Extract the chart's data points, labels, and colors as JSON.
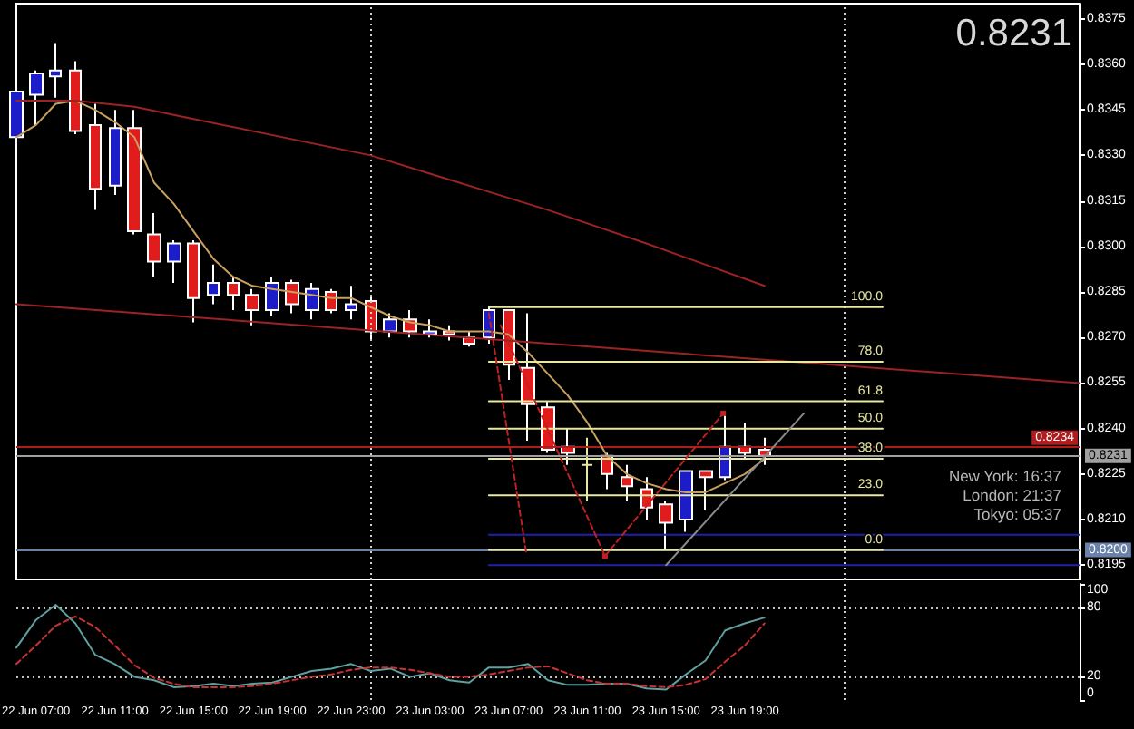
{
  "chart_data": [
    {
      "type": "candlestick",
      "x": [
        "--06-22T06:00",
        "--06-22T07:00",
        "--06-22T08:00",
        "--06-22T09:00",
        "--06-22T10:00",
        "--06-22T11:00",
        "--06-22T12:00",
        "--06-22T13:00",
        "--06-22T14:00",
        "--06-22T15:00",
        "--06-22T16:00",
        "--06-22T17:00",
        "--06-22T18:00",
        "--06-22T19:00",
        "--06-22T20:00",
        "--06-22T21:00",
        "--06-22T22:00",
        "--06-22T23:00",
        "--06-23T00:00",
        "--06-23T01:00",
        "--06-23T02:00",
        "--06-23T03:00",
        "--06-23T04:00",
        "--06-23T05:00",
        "--06-23T06:00",
        "--06-23T07:00",
        "--06-23T08:00",
        "--06-23T09:00",
        "--06-23T10:00",
        "--06-23T11:00",
        "--06-23T12:00",
        "--06-23T13:00",
        "--06-23T14:00",
        "--06-23T15:00",
        "--06-23T16:00",
        "--06-23T17:00",
        "--06-23T18:00",
        "--06-23T19:00",
        "--06-23T20:00"
      ],
      "ohlc": [
        [
          0.8336,
          0.8352,
          0.8334,
          0.8351
        ],
        [
          0.835,
          0.8358,
          0.834,
          0.8357
        ],
        [
          0.8356,
          0.8367,
          0.8349,
          0.8358
        ],
        [
          0.8358,
          0.8361,
          0.8337,
          0.8338
        ],
        [
          0.834,
          0.8347,
          0.8312,
          0.8319
        ],
        [
          0.832,
          0.8345,
          0.8317,
          0.8339
        ],
        [
          0.8339,
          0.8345,
          0.8304,
          0.8305
        ],
        [
          0.8304,
          0.8311,
          0.829,
          0.8295
        ],
        [
          0.8295,
          0.8302,
          0.8288,
          0.8301
        ],
        [
          0.8301,
          0.8302,
          0.8275,
          0.8283
        ],
        [
          0.8284,
          0.8294,
          0.8281,
          0.8288
        ],
        [
          0.8288,
          0.829,
          0.8279,
          0.8284
        ],
        [
          0.8284,
          0.8286,
          0.8274,
          0.8279
        ],
        [
          0.8279,
          0.829,
          0.8277,
          0.8288
        ],
        [
          0.8288,
          0.8289,
          0.8278,
          0.8281
        ],
        [
          0.8279,
          0.8288,
          0.8276,
          0.8286
        ],
        [
          0.8285,
          0.8286,
          0.8278,
          0.8279
        ],
        [
          0.8279,
          0.8287,
          0.8276,
          0.8281
        ],
        [
          0.8282,
          0.8284,
          0.8269,
          0.8272
        ],
        [
          0.8272,
          0.8278,
          0.827,
          0.8276
        ],
        [
          0.8276,
          0.8279,
          0.827,
          0.8272
        ],
        [
          0.8271,
          0.8276,
          0.827,
          0.8272
        ],
        [
          0.8272,
          0.8274,
          0.8269,
          0.8271
        ],
        [
          0.827,
          0.8272,
          0.8267,
          0.8268
        ],
        [
          0.827,
          0.828,
          0.8268,
          0.8279
        ],
        [
          0.8279,
          0.8279,
          0.8256,
          0.8261
        ],
        [
          0.826,
          0.8278,
          0.8236,
          0.8248
        ],
        [
          0.8247,
          0.8249,
          0.8232,
          0.8233
        ],
        [
          0.8234,
          0.824,
          0.8228,
          0.8232
        ],
        [
          0.8228,
          0.8237,
          0.8216,
          0.8228
        ],
        [
          0.8231,
          0.8232,
          0.822,
          0.8225
        ],
        [
          0.8224,
          0.8228,
          0.8216,
          0.8221
        ],
        [
          0.822,
          0.8224,
          0.821,
          0.8214
        ],
        [
          0.8215,
          0.8216,
          0.82,
          0.8209
        ],
        [
          0.821,
          0.8226,
          0.8206,
          0.8226
        ],
        [
          0.8226,
          0.8226,
          0.8213,
          0.8224
        ],
        [
          0.8224,
          0.8245,
          0.8223,
          0.8234
        ],
        [
          0.8234,
          0.8242,
          0.823,
          0.8232
        ],
        [
          0.8233,
          0.8237,
          0.8228,
          0.8231
        ]
      ],
      "colors": [
        "#1c1cc8",
        "#1c1cc8",
        "#1c1cc8",
        "#e01c1c",
        "#e01c1c",
        "#1c1cc8",
        "#e01c1c",
        "#e01c1c",
        "#1c1cc8",
        "#e01c1c",
        "#1c1cc8",
        "#e01c1c",
        "#e01c1c",
        "#1c1cc8",
        "#e01c1c",
        "#1c1cc8",
        "#e01c1c",
        "#1c1cc8",
        "#e01c1c",
        "#1c1cc8",
        "#e01c1c",
        "#1c1cc8",
        "#e01c1c",
        "#e01c1c",
        "#1c1cc8",
        "#e01c1c",
        "#e01c1c",
        "#e01c1c",
        "#e01c1c",
        "#e8e8a0",
        "#e01c1c",
        "#e01c1c",
        "#e01c1c",
        "#e01c1c",
        "#1c1cc8",
        "#e01c1c",
        "#1c1cc8",
        "#e01c1c",
        "#e01c1c"
      ],
      "series": [
        {
          "type": "line",
          "color": "#c8a060",
          "values": [
            0.8336,
            0.834,
            0.8347,
            0.8348,
            0.8345,
            0.8341,
            0.8336,
            0.8321,
            0.8314,
            0.8305,
            0.8296,
            0.829,
            0.8287,
            0.8286,
            0.8285,
            0.8284,
            0.8283,
            0.8283,
            0.828,
            0.8277,
            0.8275,
            0.8274,
            0.8272,
            0.8272,
            0.8272,
            0.8271,
            0.8265,
            0.8258,
            0.8251,
            0.8242,
            0.8231,
            0.8225,
            0.8222,
            0.822,
            0.8219,
            0.8219,
            0.8222,
            0.8225,
            0.823
          ]
        },
        {
          "type": "line",
          "color": "#9b2323",
          "x": [
            "--06-22T06:00",
            "--06-22T09:00",
            "--06-22T12:00",
            "--06-22T15:00",
            "--06-23T00:00",
            "--06-23T03:00",
            "--06-23T09:00",
            "--06-23T14:00",
            "--06-23T20:00"
          ],
          "values": [
            0.8348,
            0.8348,
            0.8346,
            0.8342,
            0.833,
            0.8324,
            0.8312,
            0.8301,
            0.8287
          ]
        },
        {
          "type": "line",
          "color": "#9b2323",
          "x": [
            "--06-22T06:00",
            "--06-24T12:00"
          ],
          "values": [
            0.8281,
            0.8255
          ]
        },
        {
          "type": "line",
          "name": "100.0",
          "color": "#e8e8a0",
          "x": [
            "--06-23T06:00",
            "--06-24T02:00"
          ],
          "values": [
            0.828,
            0.828
          ]
        },
        {
          "type": "line",
          "name": "78.0",
          "color": "#e8e8a0",
          "x": [
            "--06-23T06:00",
            "--06-24T02:00"
          ],
          "values": [
            0.8262,
            0.8262
          ]
        },
        {
          "type": "line",
          "name": "61.8",
          "color": "#e8e8a0",
          "x": [
            "--06-23T06:00",
            "--06-24T02:00"
          ],
          "values": [
            0.8249,
            0.8249
          ]
        },
        {
          "type": "line",
          "name": "50.0",
          "color": "#e8e8a0",
          "x": [
            "--06-23T06:00",
            "--06-24T02:00"
          ],
          "values": [
            0.824,
            0.824
          ]
        },
        {
          "type": "line",
          "name": "38.0",
          "color": "#e8e8a0",
          "x": [
            "--06-23T06:00",
            "--06-24T02:00"
          ],
          "values": [
            0.823,
            0.823
          ]
        },
        {
          "type": "line",
          "name": "23.0",
          "color": "#e8e8a0",
          "x": [
            "--06-23T06:00",
            "--06-24T02:00"
          ],
          "values": [
            0.8218,
            0.8218
          ]
        },
        {
          "type": "line",
          "name": "0.0",
          "color": "#e8e8a0",
          "x": [
            "--06-23T06:00",
            "--06-24T02:00"
          ],
          "values": [
            0.82,
            0.82
          ]
        },
        {
          "type": "line",
          "color": "#2020a8",
          "x": [
            "--06-23T06:00",
            "--06-24T12:00"
          ],
          "values": [
            0.8205,
            0.8205
          ]
        },
        {
          "type": "line",
          "color": "#2020a8",
          "x": [
            "--06-23T06:00",
            "--06-24T12:00"
          ],
          "values": [
            0.8195,
            0.8195
          ]
        },
        {
          "type": "line",
          "color": "#8a8a8a",
          "x": [
            "--06-23T15:00",
            "--06-23T22:00"
          ],
          "values": [
            0.8195,
            0.8245
          ]
        },
        {
          "type": "line",
          "color": "#c02020",
          "line_style": "dashed",
          "x": [
            "--06-23T06:00",
            "--06-23T07:54"
          ],
          "values": [
            0.8278,
            0.8199
          ]
        },
        {
          "type": "line",
          "color": "#c02020",
          "line_style": "dashed",
          "x": [
            "--06-23T06:36",
            "--06-23T11:54"
          ],
          "values": [
            0.8274,
            0.8198
          ]
        },
        {
          "type": "line",
          "color": "#c02020",
          "line_style": "dashed",
          "marker": "square",
          "x": [
            "--06-23T11:54",
            "--06-23T17:54"
          ],
          "values": [
            0.8198,
            0.8245
          ]
        }
      ],
      "xlim": [
        "--06-22T06:00",
        "--06-24T12:00"
      ],
      "ylim": [
        0.819,
        0.838
      ],
      "yticks": [
        0.8195,
        {
          "value": 0.821,
          "label": "0.8210"
        },
        0.8225,
        {
          "value": 0.824,
          "label": "0.8240"
        },
        0.8255,
        {
          "value": 0.827,
          "label": "0.8270"
        },
        0.8285,
        {
          "value": 0.83,
          "label": "0.8300"
        },
        0.8315,
        {
          "value": 0.833,
          "label": "0.8330"
        },
        0.8345,
        {
          "value": 0.836,
          "label": "0.8360"
        },
        0.8375
      ],
      "tick_labels": "y",
      "ref_lines": [
        {
          "axis": "x",
          "value": "--06-23T00:00",
          "color": "#d0d0d0",
          "line_style": "dotted"
        },
        {
          "axis": "x",
          "value": "--06-24T00:00",
          "color": "#d0d0d0",
          "line_style": "dotted"
        },
        {
          "axis": "y",
          "value": 0.8234,
          "label": "0.8234",
          "color": "#b01c1c"
        },
        {
          "axis": "y",
          "value": 0.8231,
          "label": "0.8231",
          "color": "#a0a0a0"
        },
        {
          "axis": "y",
          "value": 0.82,
          "label": "0.8200",
          "color": "#6a82aa"
        }
      ],
      "annotations": [
        "0.8231",
        "New York: 16:37",
        "London: 21:37",
        "Tokyo: 05:37"
      ]
    },
    {
      "type": "line",
      "x": [
        "--06-22T06:00",
        "--06-22T07:00",
        "--06-22T08:00",
        "--06-22T09:00",
        "--06-22T10:00",
        "--06-22T11:00",
        "--06-22T12:00",
        "--06-22T13:00",
        "--06-22T14:00",
        "--06-22T15:00",
        "--06-22T16:00",
        "--06-22T17:00",
        "--06-22T18:00",
        "--06-22T19:00",
        "--06-22T20:00",
        "--06-22T21:00",
        "--06-22T22:00",
        "--06-22T23:00",
        "--06-23T00:00",
        "--06-23T01:00",
        "--06-23T02:00",
        "--06-23T03:00",
        "--06-23T04:00",
        "--06-23T05:00",
        "--06-23T06:00",
        "--06-23T07:00",
        "--06-23T08:00",
        "--06-23T09:00",
        "--06-23T10:00",
        "--06-23T11:00",
        "--06-23T12:00",
        "--06-23T13:00",
        "--06-23T14:00",
        "--06-23T15:00",
        "--06-23T16:00",
        "--06-23T17:00",
        "--06-23T18:00",
        "--06-23T19:00",
        "--06-23T20:00"
      ],
      "series": [
        {
          "color": "#5fa0a0",
          "values": [
            45,
            69,
            82,
            66,
            39,
            31,
            20,
            17,
            11,
            12,
            14,
            12,
            14,
            15,
            20,
            25,
            27,
            31,
            25,
            27,
            20,
            23,
            17,
            15,
            28,
            28,
            31,
            17,
            13,
            13,
            14,
            14,
            10,
            9,
            22,
            34,
            60,
            66,
            71
          ]
        },
        {
          "color": "#c83232",
          "line_style": "dashed",
          "values": [
            31,
            47,
            64,
            72,
            63,
            47,
            30,
            19,
            14,
            11,
            11,
            11,
            12,
            14,
            17,
            20,
            22,
            26,
            28,
            28,
            26,
            23,
            20,
            20,
            22,
            25,
            28,
            29,
            23,
            17,
            14,
            14,
            12,
            11,
            13,
            18,
            33,
            47,
            66
          ]
        }
      ],
      "xlim": [
        "--06-22T06:00",
        "--06-24T12:00"
      ],
      "xticks": [
        {
          "value": "--06-22T07:00",
          "label": "22 Jun 07:00"
        },
        {
          "value": "--06-22T11:00",
          "label": "22 Jun 11:00"
        },
        {
          "value": "--06-22T15:00",
          "label": "22 Jun 15:00"
        },
        {
          "value": "--06-22T19:00",
          "label": "22 Jun 19:00"
        },
        {
          "value": "--06-22T23:00",
          "label": "22 Jun 23:00"
        },
        {
          "value": "--06-23T03:00",
          "label": "23 Jun 03:00"
        },
        {
          "value": "--06-23T07:00",
          "label": "23 Jun 07:00"
        },
        {
          "value": "--06-23T11:00",
          "label": "23 Jun 11:00"
        },
        {
          "value": "--06-23T15:00",
          "label": "23 Jun 15:00"
        },
        {
          "value": "--06-23T19:00",
          "label": "23 Jun 19:00"
        }
      ],
      "ylim": [
        0,
        100
      ],
      "yticks": [
        0,
        20,
        80,
        100
      ],
      "ref_lines": [
        {
          "axis": "y",
          "value": 20,
          "color": "#c0c0c0",
          "line_style": "dotted"
        },
        {
          "axis": "y",
          "value": 80,
          "color": "#c0c0c0",
          "line_style": "dotted"
        },
        {
          "axis": "x",
          "value": "--06-23T00:00",
          "color": "#d0d0d0",
          "line_style": "dotted"
        },
        {
          "axis": "x",
          "value": "--06-24T00:00",
          "color": "#d0d0d0",
          "line_style": "dotted"
        }
      ]
    }
  ]
}
